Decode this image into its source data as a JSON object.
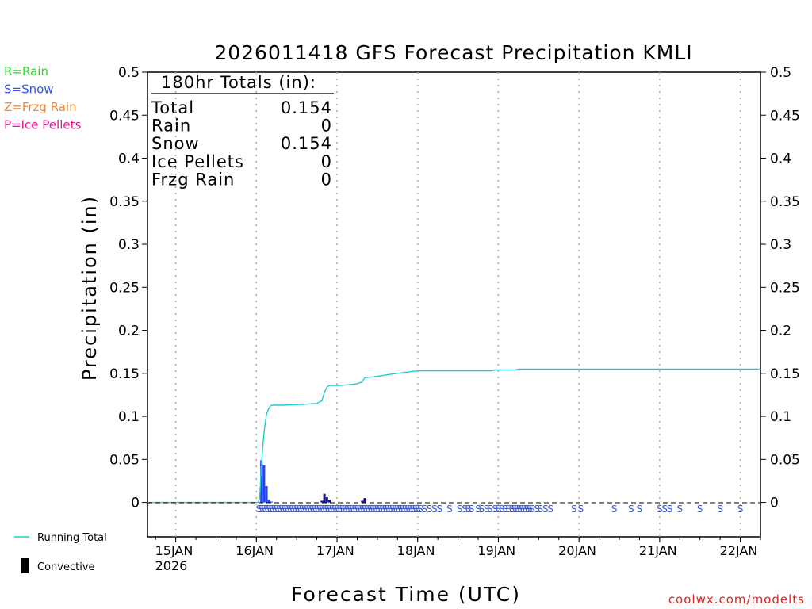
{
  "chart_data": {
    "type": "bar+line",
    "title": "2026011418 GFS Forecast Precipitation KMLI",
    "xlabel": "Forecast Time (UTC)",
    "ylabel": "Precipitation (in)",
    "ylim": [
      -0.04,
      0.5
    ],
    "y_ticks": [
      "0.5",
      "0.45",
      "0.4",
      "0.35",
      "0.3",
      "0.25",
      "0.2",
      "0.15",
      "0.1",
      "0.05",
      "0"
    ],
    "x_range_hours": [
      -2.4,
      180
    ],
    "x_ticks": [
      {
        "label": "15JAN",
        "sub": "2026",
        "hour": 6
      },
      {
        "label": "16JAN",
        "sub": "",
        "hour": 30
      },
      {
        "label": "17JAN",
        "sub": "",
        "hour": 54
      },
      {
        "label": "18JAN",
        "sub": "",
        "hour": 78
      },
      {
        "label": "19JAN",
        "sub": "",
        "hour": 102
      },
      {
        "label": "20JAN",
        "sub": "",
        "hour": 126
      },
      {
        "label": "21JAN",
        "sub": "",
        "hour": 150
      },
      {
        "label": "22JAN",
        "sub": "",
        "hour": 174
      }
    ],
    "totals_box": {
      "header": "180hr Totals (in):",
      "rows": [
        {
          "label": "Total",
          "value": "0.154"
        },
        {
          "label": "Rain",
          "value": "0"
        },
        {
          "label": "Snow",
          "value": "0.154"
        },
        {
          "label": "Ice Pellets",
          "value": "0"
        },
        {
          "label": "Frzg Rain",
          "value": "0"
        }
      ]
    },
    "precip_type_legend": [
      {
        "text": "R=Rain",
        "color": "#22dd22"
      },
      {
        "text": "S=Snow",
        "color": "#3355ee"
      },
      {
        "text": "Z=Frzg Rain",
        "color": "#ee8833"
      },
      {
        "text": "P=Ice Pellets",
        "color": "#ee1199"
      }
    ],
    "series_legend": {
      "running_total": "Running Total",
      "convective": "Convective",
      "running_total_color": "#22cccc"
    },
    "bars": [
      {
        "hour": 31.5,
        "value": 0.049,
        "kind": "snow"
      },
      {
        "hour": 32.25,
        "value": 0.043,
        "kind": "snow"
      },
      {
        "hour": 33.0,
        "value": 0.019,
        "kind": "snow"
      },
      {
        "hour": 33.75,
        "value": 0.003,
        "kind": "snow"
      },
      {
        "hour": 34.5,
        "value": 0.001,
        "kind": "snow"
      },
      {
        "hour": 49.5,
        "value": 0.002,
        "kind": "convective"
      },
      {
        "hour": 50.25,
        "value": 0.01,
        "kind": "convective"
      },
      {
        "hour": 51.0,
        "value": 0.006,
        "kind": "convective"
      },
      {
        "hour": 51.75,
        "value": 0.003,
        "kind": "convective"
      },
      {
        "hour": 61.5,
        "value": 0.002,
        "kind": "convective"
      },
      {
        "hour": 62.25,
        "value": 0.005,
        "kind": "convective"
      }
    ],
    "running_total": [
      {
        "hour": -2.4,
        "value": 0
      },
      {
        "hour": 30.5,
        "value": 0
      },
      {
        "hour": 31.0,
        "value": 0.005
      },
      {
        "hour": 31.5,
        "value": 0.045
      },
      {
        "hour": 32.25,
        "value": 0.08
      },
      {
        "hour": 33.0,
        "value": 0.102
      },
      {
        "hour": 33.75,
        "value": 0.11
      },
      {
        "hour": 34.5,
        "value": 0.113
      },
      {
        "hour": 38,
        "value": 0.113
      },
      {
        "hour": 44,
        "value": 0.114
      },
      {
        "hour": 48,
        "value": 0.115
      },
      {
        "hour": 49.5,
        "value": 0.118
      },
      {
        "hour": 50.25,
        "value": 0.128
      },
      {
        "hour": 51.0,
        "value": 0.134
      },
      {
        "hour": 51.75,
        "value": 0.136
      },
      {
        "hour": 55,
        "value": 0.136
      },
      {
        "hour": 58,
        "value": 0.137
      },
      {
        "hour": 60,
        "value": 0.138
      },
      {
        "hour": 61.5,
        "value": 0.14
      },
      {
        "hour": 62.25,
        "value": 0.145
      },
      {
        "hour": 65,
        "value": 0.146
      },
      {
        "hour": 70,
        "value": 0.149
      },
      {
        "hour": 74,
        "value": 0.151
      },
      {
        "hour": 78,
        "value": 0.153
      },
      {
        "hour": 100,
        "value": 0.153
      },
      {
        "hour": 101,
        "value": 0.154
      },
      {
        "hour": 107,
        "value": 0.154
      },
      {
        "hour": 108,
        "value": 0.155
      },
      {
        "hour": 180,
        "value": 0.155
      }
    ],
    "precip_type_markers": {
      "letter": "S",
      "dense_ranges": [
        [
          30.75,
          78.75
        ]
      ],
      "hours": [
        80,
        81.5,
        83,
        84.5,
        87.5,
        90.5,
        92,
        93,
        94,
        96,
        97,
        98.5,
        99.5,
        101,
        102,
        103,
        104,
        105,
        106,
        106.75,
        107.5,
        108.25,
        109,
        109.75,
        110.5,
        111.25,
        112,
        113.5,
        114.5,
        116,
        117.5,
        124.5,
        126.5,
        136.5,
        141.5,
        144,
        150,
        151.5,
        153,
        156,
        162,
        168,
        174
      ]
    }
  },
  "credit": "coolwx.com/modelts"
}
